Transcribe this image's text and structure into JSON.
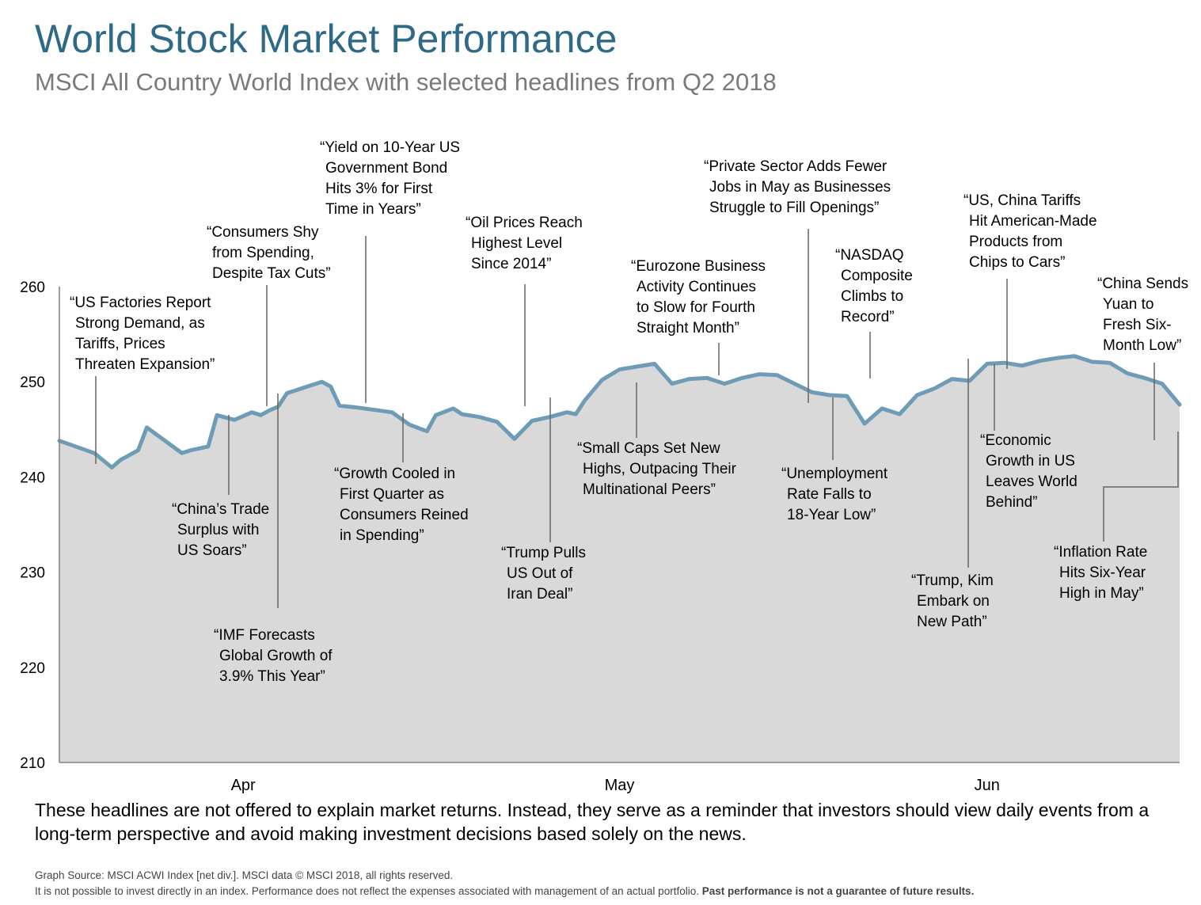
{
  "title": "World Stock Market Performance",
  "subtitle": "MSCI All Country World Index with selected headlines from Q2 2018",
  "chart_data": {
    "type": "area",
    "ylim": [
      210,
      260
    ],
    "yticks": [
      210,
      220,
      230,
      240,
      250,
      260
    ],
    "x_domain": [
      0,
      64
    ],
    "x_ticks": [
      {
        "label": "Apr",
        "x": 10.5
      },
      {
        "label": "May",
        "x": 32
      },
      {
        "label": "Jun",
        "x": 53
      }
    ],
    "line_color": "#6e9cb6",
    "fill_color": "#d9d9d9",
    "series": [
      {
        "x": [
          0,
          2,
          3,
          3.5,
          4.5,
          5,
          7,
          7.5,
          8,
          8.5,
          9,
          10,
          11,
          11.5,
          12,
          12.5,
          13,
          15,
          15.5,
          16,
          16.5,
          17,
          19,
          20,
          21,
          21.5,
          22.5,
          23,
          24,
          25,
          26,
          27,
          28,
          29,
          29.5,
          30,
          31,
          32,
          33,
          34,
          35,
          36,
          37,
          38,
          39,
          40,
          41,
          42,
          43,
          44,
          45,
          46,
          47,
          48,
          49,
          50,
          51,
          52,
          53,
          54,
          55,
          56,
          57,
          58,
          59,
          60,
          61,
          62,
          63,
          64
        ],
        "y": [
          243.8,
          242.5,
          241.0,
          241.8,
          242.8,
          245.2,
          242.5,
          242.8,
          243.0,
          243.2,
          246.5,
          246.0,
          246.8,
          246.5,
          247.0,
          247.4,
          248.8,
          250.0,
          249.5,
          247.5,
          247.4,
          247.3,
          246.8,
          245.5,
          244.8,
          246.5,
          247.2,
          246.6,
          246.3,
          245.8,
          244.0,
          245.9,
          246.3,
          246.8,
          246.6,
          248.0,
          250.2,
          251.3,
          251.6,
          251.9,
          249.8,
          250.3,
          250.4,
          249.8,
          250.4,
          250.8,
          250.7,
          249.8,
          248.9,
          248.6,
          248.5,
          245.6,
          247.2,
          246.6,
          248.6,
          249.3,
          250.3,
          250.1,
          251.9,
          252.0,
          251.7,
          252.2,
          252.5,
          252.7,
          252.1,
          252.0,
          250.9,
          250.4,
          249.8,
          247.6
        ]
      }
    ],
    "headlines": [
      {
        "text": [
          "“US Factories Report",
          "Strong Demand, as",
          "Tariffs, Prices",
          "Threaten Expansion”"
        ]
      },
      {
        "text": [
          "“China’s Trade",
          "Surplus with",
          "US Soars”"
        ]
      },
      {
        "text": [
          "“Consumers Shy",
          "from Spending,",
          "Despite Tax Cuts”"
        ]
      },
      {
        "text": [
          "“IMF Forecasts",
          "Global Growth of",
          "3.9% This Year”"
        ]
      },
      {
        "text": [
          "“Yield on 10-Year US",
          "Government Bond",
          "Hits 3% for First",
          "Time in Years”"
        ]
      },
      {
        "text": [
          "“Growth Cooled in",
          "First Quarter as",
          "Consumers Reined",
          "in Spending”"
        ]
      },
      {
        "text": [
          "“Oil Prices Reach",
          "Highest Level",
          "Since 2014”"
        ]
      },
      {
        "text": [
          "“Trump Pulls",
          "US Out of",
          "Iran Deal”"
        ]
      },
      {
        "text": [
          "“Small Caps Set New",
          "Highs, Outpacing Their",
          "Multinational Peers”"
        ]
      },
      {
        "text": [
          "“Eurozone Business",
          "Activity Continues",
          "to Slow for Fourth",
          "Straight Month”"
        ]
      },
      {
        "text": [
          "“Private Sector Adds Fewer",
          "Jobs in May as Businesses",
          "Struggle to Fill Openings”"
        ]
      },
      {
        "text": [
          "“Unemployment",
          "Rate Falls to",
          "18-Year Low”"
        ]
      },
      {
        "text": [
          "“NASDAQ",
          "Composite",
          "Climbs to",
          "Record”"
        ]
      },
      {
        "text": [
          "“Trump, Kim",
          "Embark on",
          "New Path”"
        ]
      },
      {
        "text": [
          "“Economic",
          "Growth in US",
          "Leaves World",
          "Behind”"
        ]
      },
      {
        "text": [
          "“US, China Tariffs",
          "Hit American-Made",
          "Products from",
          "Chips to Cars”"
        ]
      },
      {
        "text": [
          "“Inflation Rate",
          "Hits Six-Year",
          "High in May”"
        ]
      },
      {
        "text": [
          "“China Sends",
          "Yuan to",
          "Fresh Six-",
          "Month Low”"
        ]
      }
    ]
  },
  "footnote": "These headlines are not offered to explain market returns. Instead, they serve as a reminder that investors should view daily events from a long-term perspective and avoid making investment decisions based solely on the news.",
  "source_line": "Graph Source: MSCI ACWI Index [net div.]. MSCI data © MSCI 2018, all rights reserved.",
  "disclaimer": "It is not possible to invest directly in an index. Performance does not reflect the expenses associated with management of an actual portfolio.",
  "disclaimer_bold": "Past performance is not a guarantee of future results."
}
